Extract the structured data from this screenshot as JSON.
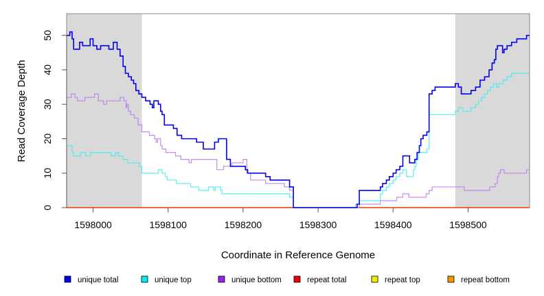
{
  "chart_data": {
    "type": "line",
    "step": true,
    "xlabel": "Coordinate in Reference Genome",
    "ylabel": "Read Coverage Depth",
    "xlim": [
      1597964.7,
      1598582.0
    ],
    "ylim": [
      0,
      56.3
    ],
    "xticks": [
      1598000,
      1598100,
      1598200,
      1598300,
      1598400,
      1598500
    ],
    "xtick_labels": [
      "1598000",
      "1598100",
      "1598200",
      "1598300",
      "1598400",
      "1598500"
    ],
    "yticks": [
      0,
      10,
      20,
      30,
      40,
      50
    ],
    "ytick_labels": [
      "0",
      "10",
      "20",
      "30",
      "40",
      "50"
    ],
    "shaded_regions": [
      [
        1597964.7,
        1598065.0
      ],
      [
        1598483.0,
        1598582.0
      ]
    ],
    "legend_position": "bottom",
    "series": [
      {
        "name": "unique total",
        "color": "#0000ee",
        "points": [
          [
            1597964.7,
            50
          ],
          [
            1597969,
            51
          ],
          [
            1597972,
            49
          ],
          [
            1597974,
            46
          ],
          [
            1597982,
            48
          ],
          [
            1597986,
            47
          ],
          [
            1597996,
            49
          ],
          [
            1598000,
            47
          ],
          [
            1598005,
            46
          ],
          [
            1598010,
            47
          ],
          [
            1598021,
            46
          ],
          [
            1598027,
            48
          ],
          [
            1598032,
            46
          ],
          [
            1598036,
            44
          ],
          [
            1598040,
            41
          ],
          [
            1598043,
            39
          ],
          [
            1598047,
            38
          ],
          [
            1598051,
            37
          ],
          [
            1598054,
            36
          ],
          [
            1598057,
            34
          ],
          [
            1598061,
            33
          ],
          [
            1598065,
            32
          ],
          [
            1598070,
            31
          ],
          [
            1598076,
            30
          ],
          [
            1598079,
            29
          ],
          [
            1598081,
            31
          ],
          [
            1598087,
            30
          ],
          [
            1598090,
            28
          ],
          [
            1598092,
            27
          ],
          [
            1598095,
            24
          ],
          [
            1598107,
            23
          ],
          [
            1598112,
            21
          ],
          [
            1598118,
            20
          ],
          [
            1598138,
            19
          ],
          [
            1598147,
            17
          ],
          [
            1598162,
            19
          ],
          [
            1598167,
            20
          ],
          [
            1598178,
            14
          ],
          [
            1598183,
            12
          ],
          [
            1598203,
            11
          ],
          [
            1598206,
            10
          ],
          [
            1598230,
            9
          ],
          [
            1598236,
            8
          ],
          [
            1598262,
            6
          ],
          [
            1598267,
            0
          ],
          [
            1598352,
            1
          ],
          [
            1598355,
            5
          ],
          [
            1598383,
            6
          ],
          [
            1598386,
            7
          ],
          [
            1598391,
            8
          ],
          [
            1598395,
            9
          ],
          [
            1598400,
            10
          ],
          [
            1598404,
            11
          ],
          [
            1598409,
            12
          ],
          [
            1598413,
            15
          ],
          [
            1598422,
            13
          ],
          [
            1598429,
            14
          ],
          [
            1598432,
            16
          ],
          [
            1598435,
            18
          ],
          [
            1598437,
            20
          ],
          [
            1598440,
            21
          ],
          [
            1598445,
            22
          ],
          [
            1598448,
            33
          ],
          [
            1598452,
            34
          ],
          [
            1598456,
            35
          ],
          [
            1598483,
            36
          ],
          [
            1598487,
            35
          ],
          [
            1598491,
            33
          ],
          [
            1598504,
            34
          ],
          [
            1598510,
            35
          ],
          [
            1598516,
            37
          ],
          [
            1598522,
            38
          ],
          [
            1598528,
            40
          ],
          [
            1598532,
            42
          ],
          [
            1598535,
            43
          ],
          [
            1598537,
            46
          ],
          [
            1598539,
            47
          ],
          [
            1598546,
            45
          ],
          [
            1598548,
            46
          ],
          [
            1598552,
            47
          ],
          [
            1598558,
            48
          ],
          [
            1598565,
            49
          ],
          [
            1598578,
            50
          ],
          [
            1598582,
            50
          ]
        ]
      },
      {
        "name": "unique top",
        "color": "#33eeee",
        "points": [
          [
            1597964.7,
            18
          ],
          [
            1597972,
            16
          ],
          [
            1597974,
            15
          ],
          [
            1597983,
            16
          ],
          [
            1597990,
            15
          ],
          [
            1597997,
            16
          ],
          [
            1598024,
            15
          ],
          [
            1598030,
            16
          ],
          [
            1598034,
            15
          ],
          [
            1598040,
            14
          ],
          [
            1598046,
            13
          ],
          [
            1598062,
            12
          ],
          [
            1598065,
            10
          ],
          [
            1598087,
            11
          ],
          [
            1598092,
            10
          ],
          [
            1598096,
            9
          ],
          [
            1598099,
            8
          ],
          [
            1598111,
            7
          ],
          [
            1598130,
            6
          ],
          [
            1598141,
            5
          ],
          [
            1598154,
            6
          ],
          [
            1598161,
            5
          ],
          [
            1598163,
            6
          ],
          [
            1598170,
            5
          ],
          [
            1598172,
            4
          ],
          [
            1598262,
            3
          ],
          [
            1598267,
            0
          ],
          [
            1598350,
            1
          ],
          [
            1598355,
            2
          ],
          [
            1598383,
            4
          ],
          [
            1598386,
            5
          ],
          [
            1598391,
            6
          ],
          [
            1598395,
            7
          ],
          [
            1598400,
            8
          ],
          [
            1598404,
            9
          ],
          [
            1598409,
            10
          ],
          [
            1598413,
            11
          ],
          [
            1598418,
            9
          ],
          [
            1598427,
            11
          ],
          [
            1598429,
            12
          ],
          [
            1598431,
            14
          ],
          [
            1598434,
            16
          ],
          [
            1598445,
            17
          ],
          [
            1598448,
            27
          ],
          [
            1598483,
            28
          ],
          [
            1598487,
            29
          ],
          [
            1598493,
            28
          ],
          [
            1598504,
            29
          ],
          [
            1598510,
            30
          ],
          [
            1598514,
            31
          ],
          [
            1598518,
            32
          ],
          [
            1598522,
            33
          ],
          [
            1598526,
            34
          ],
          [
            1598530,
            35
          ],
          [
            1598534,
            36
          ],
          [
            1598538,
            35
          ],
          [
            1598541,
            36
          ],
          [
            1598547,
            37
          ],
          [
            1598552,
            38
          ],
          [
            1598558,
            39
          ],
          [
            1598582,
            39
          ]
        ]
      },
      {
        "name": "unique bottom",
        "color": "#bb77ee",
        "points": [
          [
            1597964.7,
            32
          ],
          [
            1597971,
            33
          ],
          [
            1597976,
            32
          ],
          [
            1597979,
            31
          ],
          [
            1597989,
            32
          ],
          [
            1598002,
            33
          ],
          [
            1598007,
            31
          ],
          [
            1598014,
            30
          ],
          [
            1598018,
            31
          ],
          [
            1598036,
            32
          ],
          [
            1598041,
            31
          ],
          [
            1598044,
            29
          ],
          [
            1598045,
            30
          ],
          [
            1598047,
            28
          ],
          [
            1598050,
            27
          ],
          [
            1598055,
            26
          ],
          [
            1598060,
            24
          ],
          [
            1598065,
            22
          ],
          [
            1598075,
            21
          ],
          [
            1598082,
            20
          ],
          [
            1598084,
            19
          ],
          [
            1598086,
            20
          ],
          [
            1598090,
            18
          ],
          [
            1598092,
            17
          ],
          [
            1598097,
            16
          ],
          [
            1598110,
            15
          ],
          [
            1598117,
            14
          ],
          [
            1598128,
            13
          ],
          [
            1598131,
            14
          ],
          [
            1598165,
            11
          ],
          [
            1598174,
            12
          ],
          [
            1598185,
            13
          ],
          [
            1598200,
            14
          ],
          [
            1598205,
            10
          ],
          [
            1598210,
            8
          ],
          [
            1598230,
            7
          ],
          [
            1598255,
            6
          ],
          [
            1598262,
            5
          ],
          [
            1598267,
            0
          ],
          [
            1598350,
            0
          ],
          [
            1598355,
            1
          ],
          [
            1598383,
            2
          ],
          [
            1598405,
            3
          ],
          [
            1598413,
            4
          ],
          [
            1598421,
            3
          ],
          [
            1598444,
            4
          ],
          [
            1598448,
            5
          ],
          [
            1598452,
            6
          ],
          [
            1598483,
            6
          ],
          [
            1598495,
            5
          ],
          [
            1598529,
            6
          ],
          [
            1598536,
            7
          ],
          [
            1598539,
            9
          ],
          [
            1598541,
            10
          ],
          [
            1598543,
            11
          ],
          [
            1598548,
            10
          ],
          [
            1598578,
            11
          ],
          [
            1598582,
            11
          ]
        ]
      },
      {
        "name": "repeat total",
        "color": "#ee0000",
        "points": [
          [
            1597964.7,
            0
          ],
          [
            1598582,
            0
          ]
        ]
      },
      {
        "name": "repeat top",
        "color": "#eeee00",
        "points": [
          [
            1597964.7,
            0
          ],
          [
            1598582,
            0
          ]
        ]
      },
      {
        "name": "repeat bottom",
        "color": "#ee9a00",
        "points": [
          [
            1597964.7,
            0
          ],
          [
            1598582,
            0
          ]
        ]
      }
    ],
    "legend": [
      {
        "label": "unique total",
        "color": "#0000ee"
      },
      {
        "label": "unique top",
        "color": "#00eeee"
      },
      {
        "label": "unique bottom",
        "color": "#a020f0"
      },
      {
        "label": "repeat total",
        "color": "#ee0000"
      },
      {
        "label": "repeat top",
        "color": "#eeee00"
      },
      {
        "label": "repeat bottom",
        "color": "#ee9a00"
      }
    ]
  }
}
